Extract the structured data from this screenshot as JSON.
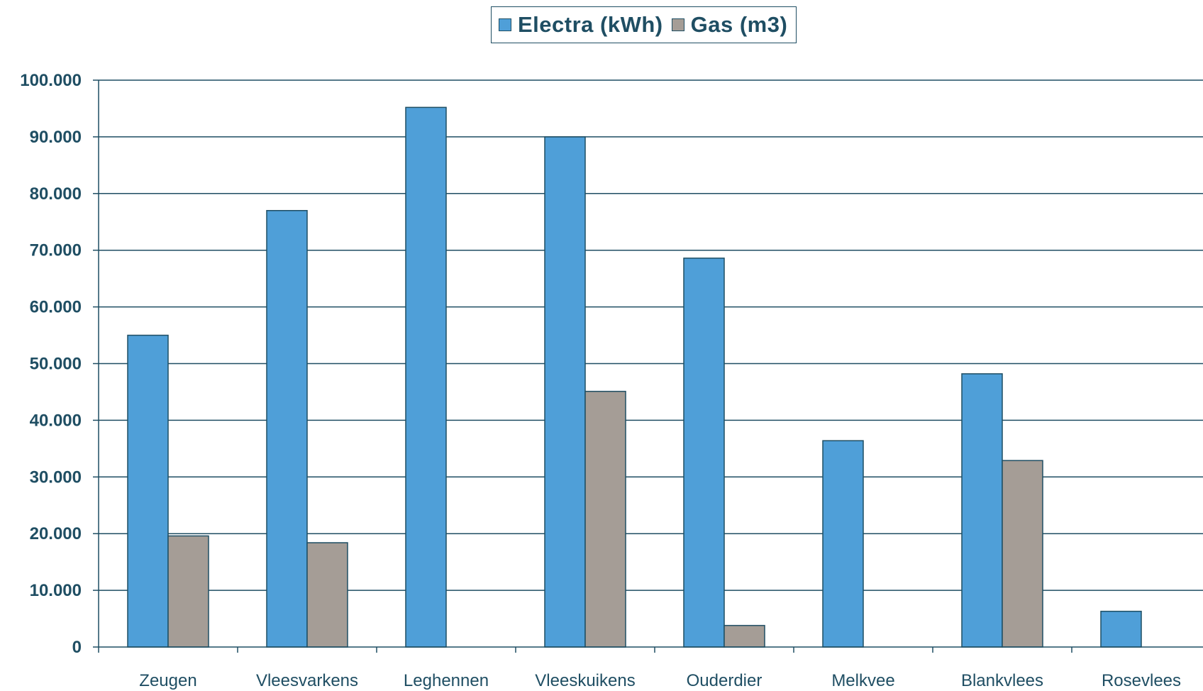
{
  "chart_data": {
    "type": "bar",
    "title": "",
    "xlabel": "",
    "ylabel": "",
    "categories": [
      "Zeugen",
      "Vleesvarkens",
      "Leghennen",
      "Vleeskuikens",
      "Ouderdier",
      "Melkvee",
      "Blankvlees",
      "Rosevlees"
    ],
    "series": [
      {
        "name": "Electra (kWh)",
        "color": "#4f9fd8",
        "values": [
          55000,
          77000,
          95200,
          90000,
          68600,
          36400,
          48200,
          6300
        ]
      },
      {
        "name": "Gas (m3)",
        "color": "#a59d96",
        "values": [
          19600,
          18400,
          0,
          45100,
          3800,
          0,
          32900,
          0
        ]
      }
    ],
    "ylim": [
      0,
      100000
    ],
    "yticks": [
      0,
      10000,
      20000,
      30000,
      40000,
      50000,
      60000,
      70000,
      80000,
      90000,
      100000
    ],
    "ytick_labels": [
      "0",
      "10.000",
      "20.000",
      "30.000",
      "40.000",
      "50.000",
      "60.000",
      "70.000",
      "80.000",
      "90.000",
      "100.000"
    ],
    "grid": true,
    "legend": "top-center",
    "axis_color": "#1f4e63"
  }
}
